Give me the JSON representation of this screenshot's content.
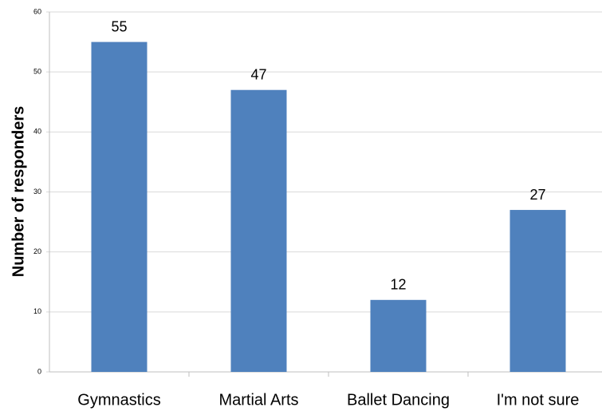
{
  "chart_data": {
    "type": "bar",
    "y_label": "Number of responders",
    "categories": [
      "Gymnastics",
      "Martial Arts",
      "Ballet Dancing",
      "I'm not sure"
    ],
    "values": [
      55,
      47,
      12,
      27
    ],
    "color": "#4f81bd",
    "ylim": [
      0,
      60
    ],
    "yticks": [
      0,
      10,
      20,
      30,
      40,
      50,
      60
    ],
    "grid": true
  }
}
